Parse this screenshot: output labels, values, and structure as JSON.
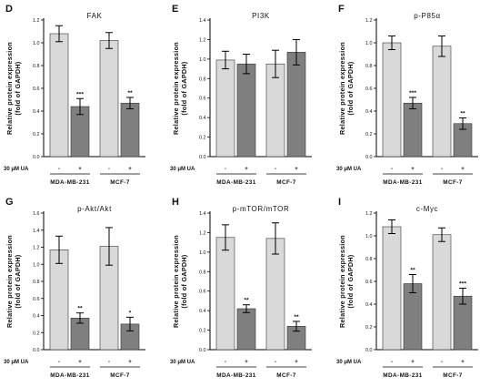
{
  "colors": {
    "control": "#d9d9d9",
    "treated": "#7f7f7f",
    "axis": "#000000"
  },
  "chart_data": [
    {
      "panel": "D",
      "type": "bar",
      "title": "FAK",
      "ylabel_lines": [
        "Relative protein expression",
        "(fold of GAPDH)"
      ],
      "ylim": [
        0,
        1.2
      ],
      "yticks": [
        "0.0",
        "0.2",
        "0.4",
        "0.6",
        "0.8",
        "1.0",
        "1.2"
      ],
      "treatment_label": "30 μM UA",
      "signs": [
        "-",
        "+",
        "-",
        "+"
      ],
      "groups": [
        "MDA-MB-231",
        "MCF-7"
      ],
      "bars": [
        {
          "value": 1.08,
          "err": 0.07,
          "sig": ""
        },
        {
          "value": 0.44,
          "err": 0.07,
          "sig": "***"
        },
        {
          "value": 1.02,
          "err": 0.07,
          "sig": ""
        },
        {
          "value": 0.47,
          "err": 0.05,
          "sig": "**"
        }
      ]
    },
    {
      "panel": "E",
      "type": "bar",
      "title": "PI3K",
      "ylabel_lines": [
        "Relative protein expression",
        "(fold of GAPDH)"
      ],
      "ylim": [
        0,
        1.4
      ],
      "yticks": [
        "0.0",
        "0.2",
        "0.4",
        "0.6",
        "0.8",
        "1.0",
        "1.2",
        "1.4"
      ],
      "treatment_label": "30 μM UA",
      "signs": [
        "-",
        "+",
        "-",
        "+"
      ],
      "groups": [
        "MDA-MB-231",
        "MCF-7"
      ],
      "bars": [
        {
          "value": 0.99,
          "err": 0.09,
          "sig": ""
        },
        {
          "value": 0.95,
          "err": 0.1,
          "sig": ""
        },
        {
          "value": 0.95,
          "err": 0.14,
          "sig": ""
        },
        {
          "value": 1.07,
          "err": 0.13,
          "sig": ""
        }
      ]
    },
    {
      "panel": "F",
      "type": "bar",
      "title": "p-P85α",
      "ylabel_lines": [
        "Relative protein expression",
        "(fold of GAPDH)"
      ],
      "ylim": [
        0,
        1.2
      ],
      "yticks": [
        "0.0",
        "0.2",
        "0.4",
        "0.6",
        "0.8",
        "1.0",
        "1.2"
      ],
      "treatment_label": "30 μM UA",
      "signs": [
        "-",
        "+",
        "-",
        "+"
      ],
      "groups": [
        "MDA-MB-231",
        "MCF-7"
      ],
      "bars": [
        {
          "value": 1.0,
          "err": 0.06,
          "sig": ""
        },
        {
          "value": 0.47,
          "err": 0.05,
          "sig": "***"
        },
        {
          "value": 0.97,
          "err": 0.09,
          "sig": ""
        },
        {
          "value": 0.29,
          "err": 0.05,
          "sig": "**"
        }
      ]
    },
    {
      "panel": "G",
      "type": "bar",
      "title": "p-Akt/Akt",
      "ylabel_lines": [
        "Relative protein expression",
        "(fold of GAPDH)"
      ],
      "ylim": [
        0,
        1.6
      ],
      "yticks": [
        "0.0",
        "0.2",
        "0.4",
        "0.6",
        "0.8",
        "1.0",
        "1.2",
        "1.4",
        "1.6"
      ],
      "treatment_label": "30 μM UA",
      "signs": [
        "-",
        "+",
        "-",
        "+"
      ],
      "groups": [
        "MDA-MB-231",
        "MCF-7"
      ],
      "bars": [
        {
          "value": 1.17,
          "err": 0.16,
          "sig": ""
        },
        {
          "value": 0.37,
          "err": 0.06,
          "sig": "**"
        },
        {
          "value": 1.21,
          "err": 0.22,
          "sig": ""
        },
        {
          "value": 0.3,
          "err": 0.08,
          "sig": "*"
        }
      ]
    },
    {
      "panel": "H",
      "type": "bar",
      "title": "p-mTOR/mTOR",
      "ylabel_lines": [
        "Relative protein expression",
        "(fold of GAPDH)"
      ],
      "ylim": [
        0,
        1.4
      ],
      "yticks": [
        "0.0",
        "0.2",
        "0.4",
        "0.6",
        "0.8",
        "1.0",
        "1.2",
        "1.4"
      ],
      "treatment_label": "30 μM UA",
      "signs": [
        "-",
        "+",
        "-",
        "+"
      ],
      "groups": [
        "MDA-MB-231",
        "MCF-7"
      ],
      "bars": [
        {
          "value": 1.15,
          "err": 0.13,
          "sig": ""
        },
        {
          "value": 0.42,
          "err": 0.04,
          "sig": "**"
        },
        {
          "value": 1.14,
          "err": 0.16,
          "sig": ""
        },
        {
          "value": 0.24,
          "err": 0.05,
          "sig": "**"
        }
      ]
    },
    {
      "panel": "I",
      "type": "bar",
      "title": "c-Myc",
      "ylabel_lines": [
        "Relative protein expression",
        "(fold of GAPDH)"
      ],
      "ylim": [
        0,
        1.2
      ],
      "yticks": [
        "0.0",
        "0.2",
        "0.4",
        "0.6",
        "0.8",
        "1.0",
        "1.2"
      ],
      "treatment_label": "30 μM UA",
      "signs": [
        "-",
        "+",
        "-",
        "+"
      ],
      "groups": [
        "MDA-MB-231",
        "MCF-7"
      ],
      "bars": [
        {
          "value": 1.08,
          "err": 0.06,
          "sig": ""
        },
        {
          "value": 0.58,
          "err": 0.08,
          "sig": "**"
        },
        {
          "value": 1.01,
          "err": 0.06,
          "sig": ""
        },
        {
          "value": 0.47,
          "err": 0.07,
          "sig": "***"
        }
      ]
    }
  ]
}
